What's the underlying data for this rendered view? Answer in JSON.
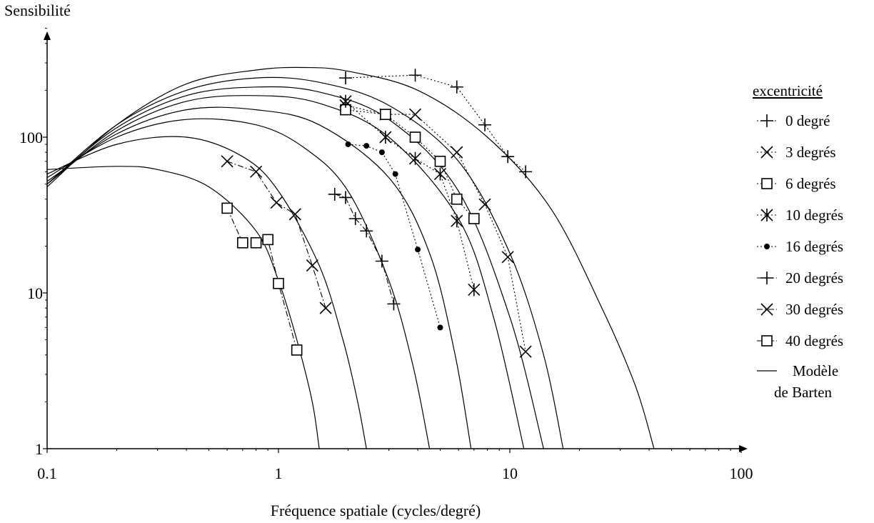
{
  "chart_data": {
    "type": "line",
    "xlabel": "Fréquence spatiale (cycles/degré)",
    "ylabel": "Sensibilité",
    "x_scale": "log",
    "y_scale": "log",
    "xlim": [
      0.1,
      100
    ],
    "ylim": [
      1,
      500
    ],
    "x_ticks": [
      "0.1",
      "1",
      "10",
      "100"
    ],
    "y_ticks": [
      "1",
      "10",
      "100"
    ],
    "legend_title": "excentricité",
    "legend_position": "right",
    "series": [
      {
        "name": "0 degré",
        "marker": "plus",
        "line": "dotted",
        "x": [
          1.95,
          3.9,
          5.9,
          7.8,
          9.8,
          11.7
        ],
        "y": [
          240,
          250,
          210,
          120,
          75,
          60
        ]
      },
      {
        "name": "3 degrés",
        "marker": "x",
        "line": "dotted",
        "x": [
          1.95,
          2.9,
          3.9,
          5.9,
          7.8,
          9.8,
          11.7
        ],
        "y": [
          160,
          140,
          140,
          80,
          37,
          17,
          4.2
        ]
      },
      {
        "name": "6 degrés",
        "marker": "square",
        "line": "dotted",
        "x": [
          1.95,
          2.9,
          3.9,
          5.0,
          5.9,
          7.0
        ],
        "y": [
          150,
          140,
          100,
          70,
          40,
          30
        ]
      },
      {
        "name": "10 degrés",
        "marker": "star",
        "line": "dotted",
        "x": [
          1.95,
          2.9,
          3.9,
          5.0,
          5.9,
          7.0
        ],
        "y": [
          170,
          100,
          73,
          58,
          29,
          10.5
        ]
      },
      {
        "name": "16 degrés",
        "marker": "dot",
        "line": "dotted",
        "x": [
          2.0,
          2.4,
          2.8,
          3.2,
          4.0,
          5.0
        ],
        "y": [
          90,
          88,
          80,
          58,
          19,
          6
        ]
      },
      {
        "name": "20 degrés",
        "marker": "plus",
        "line": "dash-dot",
        "x": [
          1.75,
          1.95,
          2.15,
          2.4,
          2.8,
          3.15
        ],
        "y": [
          43,
          41,
          30,
          25,
          16,
          8.5
        ]
      },
      {
        "name": "30 degrés",
        "marker": "x",
        "line": "dash-dot",
        "x": [
          0.6,
          0.8,
          0.98,
          1.18,
          1.4,
          1.6
        ],
        "y": [
          70,
          60,
          38,
          32,
          15,
          8
        ]
      },
      {
        "name": "40 degrés",
        "marker": "square",
        "line": "dash-dot",
        "x": [
          0.6,
          0.7,
          0.8,
          0.9,
          1.0,
          1.2
        ],
        "y": [
          35,
          21,
          21,
          22,
          11.5,
          4.3
        ]
      }
    ],
    "model": {
      "name": "Modèle de Barten",
      "name_lines": [
        "Modèle",
        "de Barten"
      ],
      "line": "solid",
      "curves": [
        {
          "x": [
            0.1,
            0.2,
            0.3,
            0.5,
            0.8,
            1.0,
            1.2,
            1.4,
            1.5
          ],
          "y": [
            62,
            65,
            62,
            48,
            25,
            12,
            5,
            2,
            1
          ]
        },
        {
          "x": [
            0.1,
            0.2,
            0.4,
            0.7,
            1.0,
            1.5,
            1.9,
            2.2,
            2.4
          ],
          "y": [
            58,
            90,
            100,
            75,
            45,
            15,
            5,
            2,
            1
          ]
        },
        {
          "x": [
            0.1,
            0.2,
            0.4,
            0.8,
            1.3,
            2.0,
            3.0,
            3.8,
            4.5
          ],
          "y": [
            55,
            100,
            130,
            120,
            85,
            45,
            12,
            3.5,
            1
          ]
        },
        {
          "x": [
            0.1,
            0.2,
            0.4,
            0.8,
            1.5,
            3.0,
            4.5,
            5.8,
            6.8
          ],
          "y": [
            52,
            105,
            150,
            150,
            120,
            55,
            18,
            4,
            1
          ]
        },
        {
          "x": [
            0.1,
            0.2,
            0.4,
            0.8,
            1.5,
            3.0,
            6.0,
            8.5,
            11.5
          ],
          "y": [
            50,
            110,
            170,
            185,
            165,
            100,
            30,
            7,
            1
          ]
        },
        {
          "x": [
            0.1,
            0.2,
            0.4,
            0.8,
            1.5,
            3.0,
            6.0,
            10.0,
            14.0
          ],
          "y": [
            50,
            115,
            185,
            210,
            195,
            130,
            45,
            7,
            1
          ]
        },
        {
          "x": [
            0.1,
            0.2,
            0.4,
            0.8,
            1.5,
            3.0,
            6.0,
            10.0,
            14.0,
            17.0
          ],
          "y": [
            50,
            120,
            200,
            240,
            225,
            160,
            70,
            18,
            4,
            1
          ]
        },
        {
          "x": [
            0.1,
            0.2,
            0.4,
            0.8,
            1.3,
            2.0,
            4.0,
            8.0,
            15.0,
            25.0,
            35.0,
            42.0
          ],
          "y": [
            48,
            120,
            220,
            270,
            280,
            265,
            200,
            100,
            35,
            8,
            2.5,
            1
          ]
        }
      ]
    }
  }
}
